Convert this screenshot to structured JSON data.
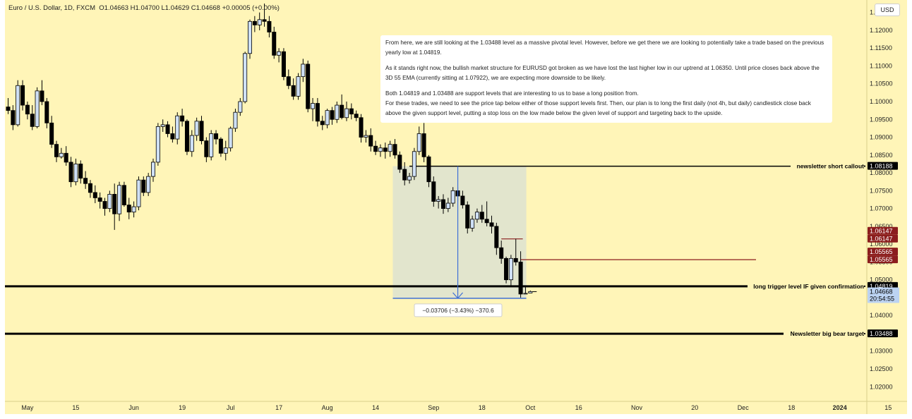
{
  "header": {
    "symbol": "Euro / U.S. Dollar, 1D, FXCM",
    "ohlc": "O1.04663 H1.04700 L1.04629 C1.04668 +0.00005 (+0.00%)",
    "currency_button": "USD"
  },
  "note": {
    "paragraphs": [
      "From here, we are still looking at the 1.03488 level as a massive pivotal level. However, before we get there we are looking to potentially take a trade based on the previous yearly low at 1.04819.",
      "As it stands right now, the bullish market structure for EURUSD got broken as we have lost the last higher low in our uptrend at 1.06350. Until price closes back above the 3D 55 EMA (currently sitting at 1.07922), we are expecting more downside to be likely.",
      "Both 1.04819 and 1.03488 are support levels that are interesting to us to base a long position from.\nFor these trades, we need to see the price tap below either of those support levels first. Then, our plan is to long the first daily (not 4h, but daily) candlestick close back above the given support level, putting a stop loss on the low made below the given level of support and targeting back to the upside."
    ]
  },
  "colors": {
    "background": "#fff5b8",
    "bull_body": "#cfe0f6",
    "bear_body": "#000000",
    "measure": "#3d6fd6",
    "red_line": "#8b1d1d"
  },
  "chart_data": {
    "type": "candlestick",
    "title": "Euro / U.S. Dollar, 1D, FXCM",
    "ylim": [
      1.0155,
      1.1285
    ],
    "y_ticks": [
      1.02,
      1.025,
      1.03,
      1.035,
      1.04,
      1.045,
      1.05,
      1.055,
      1.06,
      1.065,
      1.07,
      1.075,
      1.08,
      1.085,
      1.09,
      1.095,
      1.1,
      1.105,
      1.11,
      1.115,
      1.12,
      1.125
    ],
    "y_tick_labels": [
      "1.02000",
      "1.02500",
      "1.03000",
      "1.03500",
      "1.04000",
      "1.04500",
      "1.05000",
      "1.05500",
      "1.06000",
      "1.06500",
      "1.07000",
      "1.07500",
      "1.08000",
      "1.08500",
      "1.09000",
      "1.09500",
      "1.10000",
      "1.10500",
      "1.11000",
      "1.11500",
      "1.12000",
      "1.12500"
    ],
    "x_ticks": [
      {
        "label": "May",
        "i": 4
      },
      {
        "label": "15",
        "i": 14
      },
      {
        "label": "Jun",
        "i": 26
      },
      {
        "label": "19",
        "i": 36
      },
      {
        "label": "Jul",
        "i": 46
      },
      {
        "label": "17",
        "i": 56
      },
      {
        "label": "Aug",
        "i": 66
      },
      {
        "label": "14",
        "i": 76
      },
      {
        "label": "Sep",
        "i": 88
      },
      {
        "label": "18",
        "i": 98
      },
      {
        "label": "Oct",
        "i": 108
      },
      {
        "label": "16",
        "i": 118
      },
      {
        "label": "Nov",
        "i": 130
      },
      {
        "label": "20",
        "i": 142
      },
      {
        "label": "Dec",
        "i": 152
      },
      {
        "label": "18",
        "i": 162
      },
      {
        "label": "2024",
        "i": 172
      },
      {
        "label": "15",
        "i": 182
      }
    ],
    "candles": [
      [
        1.0985,
        1.101,
        1.0965,
        1.0975
      ],
      [
        1.0975,
        1.099,
        1.092,
        1.0935
      ],
      [
        1.0935,
        1.106,
        1.093,
        1.1045
      ],
      [
        1.1045,
        1.106,
        1.0975,
        1.099
      ],
      [
        1.099,
        1.1,
        1.095,
        1.0965
      ],
      [
        1.0965,
        1.099,
        1.092,
        1.093
      ],
      [
        1.093,
        1.104,
        1.0925,
        1.103
      ],
      [
        1.103,
        1.106,
        1.099,
        1.1
      ],
      [
        1.1,
        1.101,
        1.0925,
        1.094
      ],
      [
        1.094,
        1.096,
        1.087,
        1.088
      ],
      [
        1.088,
        1.089,
        1.083,
        1.0845
      ],
      [
        1.0845,
        1.087,
        1.084,
        1.0855
      ],
      [
        1.0855,
        1.0875,
        1.082,
        1.083
      ],
      [
        1.083,
        1.0845,
        1.076,
        1.0775
      ],
      [
        1.0775,
        1.084,
        1.0765,
        1.0825
      ],
      [
        1.0825,
        1.0835,
        1.077,
        1.0785
      ],
      [
        1.0785,
        1.0805,
        1.0755,
        1.077
      ],
      [
        1.077,
        1.078,
        1.073,
        1.0745
      ],
      [
        1.0745,
        1.0765,
        1.0715,
        1.073
      ],
      [
        1.073,
        1.0745,
        1.07,
        1.072
      ],
      [
        1.072,
        1.073,
        1.068,
        1.07
      ],
      [
        1.07,
        1.075,
        1.069,
        1.074
      ],
      [
        1.074,
        1.077,
        1.064,
        1.0685
      ],
      [
        1.0685,
        1.0775,
        1.0665,
        1.0765
      ],
      [
        1.0765,
        1.0775,
        1.0705,
        1.071
      ],
      [
        1.071,
        1.073,
        1.067,
        1.069
      ],
      [
        1.069,
        1.072,
        1.0675,
        1.0705
      ],
      [
        1.0705,
        1.079,
        1.0695,
        1.078
      ],
      [
        1.078,
        1.079,
        1.0735,
        1.0745
      ],
      [
        1.0745,
        1.08,
        1.0735,
        1.079
      ],
      [
        1.079,
        1.084,
        1.0775,
        1.083
      ],
      [
        1.083,
        1.094,
        1.082,
        1.093
      ],
      [
        1.093,
        1.095,
        1.0915,
        1.0935
      ],
      [
        1.0935,
        1.0945,
        1.09,
        1.091
      ],
      [
        1.091,
        1.093,
        1.0885,
        1.0895
      ],
      [
        1.0895,
        1.097,
        1.088,
        1.096
      ],
      [
        1.096,
        1.098,
        1.093,
        1.0945
      ],
      [
        1.0945,
        1.095,
        1.085,
        1.086
      ],
      [
        1.086,
        1.092,
        1.0845,
        1.0905
      ],
      [
        1.0905,
        1.0955,
        1.089,
        1.0945
      ],
      [
        1.0945,
        1.096,
        1.088,
        1.089
      ],
      [
        1.089,
        1.09,
        1.083,
        1.0845
      ],
      [
        1.0845,
        1.092,
        1.0835,
        1.091
      ],
      [
        1.091,
        1.092,
        1.088,
        1.0895
      ],
      [
        1.0895,
        1.09,
        1.0845,
        1.0855
      ],
      [
        1.0855,
        1.089,
        1.0835,
        1.087
      ],
      [
        1.087,
        1.093,
        1.086,
        1.0925
      ],
      [
        1.0925,
        1.098,
        1.0915,
        1.097
      ],
      [
        1.097,
        1.101,
        1.096,
        1.1
      ],
      [
        1.1,
        1.114,
        1.0995,
        1.1135
      ],
      [
        1.1135,
        1.123,
        1.112,
        1.1225
      ],
      [
        1.1225,
        1.124,
        1.1195,
        1.1215
      ],
      [
        1.1215,
        1.125,
        1.12,
        1.123
      ],
      [
        1.123,
        1.1275,
        1.121,
        1.1225
      ],
      [
        1.1225,
        1.124,
        1.118,
        1.1195
      ],
      [
        1.1195,
        1.121,
        1.112,
        1.113
      ],
      [
        1.113,
        1.115,
        1.111,
        1.114
      ],
      [
        1.114,
        1.115,
        1.106,
        1.107
      ],
      [
        1.107,
        1.109,
        1.1035,
        1.1045
      ],
      [
        1.1045,
        1.1065,
        1.1005,
        1.1015
      ],
      [
        1.1015,
        1.108,
        1.1005,
        1.107
      ],
      [
        1.107,
        1.112,
        1.1055,
        1.1105
      ],
      [
        1.1105,
        1.1115,
        1.097,
        1.098
      ],
      [
        1.098,
        1.101,
        1.0945,
        1.0995
      ],
      [
        1.0995,
        1.101,
        1.093,
        1.0945
      ],
      [
        1.0945,
        1.096,
        1.092,
        1.0935
      ],
      [
        1.0935,
        1.098,
        1.0925,
        1.0975
      ],
      [
        1.0975,
        1.0985,
        1.0935,
        1.095
      ],
      [
        1.095,
        1.1,
        1.094,
        1.099
      ],
      [
        1.099,
        1.102,
        1.095,
        1.0955
      ],
      [
        1.0955,
        1.1,
        1.0945,
        1.098
      ],
      [
        1.098,
        1.0995,
        1.095,
        1.0965
      ],
      [
        1.0965,
        1.0975,
        1.0945,
        1.0955
      ],
      [
        1.0955,
        1.0965,
        1.0885,
        1.09
      ],
      [
        1.09,
        1.092,
        1.0885,
        1.0905
      ],
      [
        1.0905,
        1.0925,
        1.086,
        1.0875
      ],
      [
        1.0875,
        1.089,
        1.085,
        1.086
      ],
      [
        1.086,
        1.088,
        1.0845,
        1.087
      ],
      [
        1.087,
        1.0885,
        1.084,
        1.086
      ],
      [
        1.086,
        1.089,
        1.0845,
        1.088
      ],
      [
        1.088,
        1.0895,
        1.084,
        1.085
      ],
      [
        1.085,
        1.086,
        1.08,
        1.081
      ],
      [
        1.081,
        1.083,
        1.0765,
        1.078
      ],
      [
        1.078,
        1.08,
        1.077,
        1.079
      ],
      [
        1.079,
        1.087,
        1.078,
        1.086
      ],
      [
        1.086,
        1.093,
        1.085,
        1.091
      ],
      [
        1.091,
        1.094,
        1.083,
        1.0845
      ],
      [
        1.0845,
        1.085,
        1.076,
        1.0775
      ],
      [
        1.0775,
        1.079,
        1.0705,
        1.072
      ],
      [
        1.072,
        1.0735,
        1.07,
        1.0725
      ],
      [
        1.0725,
        1.074,
        1.0685,
        1.07
      ],
      [
        1.07,
        1.073,
        1.069,
        1.0715
      ],
      [
        1.0715,
        1.076,
        1.0705,
        1.075
      ],
      [
        1.075,
        1.076,
        1.072,
        1.0735
      ],
      [
        1.0735,
        1.075,
        1.07,
        1.071
      ],
      [
        1.071,
        1.072,
        1.063,
        1.0645
      ],
      [
        1.0645,
        1.068,
        1.0635,
        1.067
      ],
      [
        1.067,
        1.07,
        1.066,
        1.069
      ],
      [
        1.069,
        1.071,
        1.066,
        1.067
      ],
      [
        1.067,
        1.072,
        1.065,
        1.066
      ],
      [
        1.066,
        1.068,
        1.063,
        1.065
      ],
      [
        1.065,
        1.066,
        1.057,
        1.059
      ],
      [
        1.059,
        1.061,
        1.0545,
        1.056
      ],
      [
        1.056,
        1.0565,
        1.049,
        1.05
      ],
      [
        1.05,
        1.057,
        1.048,
        1.056
      ],
      [
        1.056,
        1.0615,
        1.054,
        1.055
      ],
      [
        1.055,
        1.058,
        1.045,
        1.046
      ],
      [
        1.046,
        1.048,
        1.046,
        1.0462
      ],
      [
        1.0463,
        1.047,
        1.0463,
        1.0467
      ]
    ],
    "horizontal_levels": [
      {
        "label": "newsletter short callout",
        "value": 1.08188,
        "price_label": "1.08188"
      },
      {
        "label": "long trigger level IF given confirmation",
        "value": 1.04819,
        "price_label": "1.04819"
      },
      {
        "label": "Newsletter big bear target",
        "value": 1.03488,
        "price_label": "1.03488"
      }
    ],
    "red_levels": [
      {
        "value": 1.06147,
        "price_label": "1.06147"
      },
      {
        "value": 1.05565,
        "price_label": "1.05565"
      }
    ],
    "current_price": {
      "value": 1.04668,
      "price_label": "1.04668",
      "countdown": "20:54:55"
    },
    "measure": {
      "label": "−0.03706 (−3.43%) −370.6",
      "from_value": 1.08188,
      "to_value": 1.04482
    },
    "currency": "USD"
  }
}
